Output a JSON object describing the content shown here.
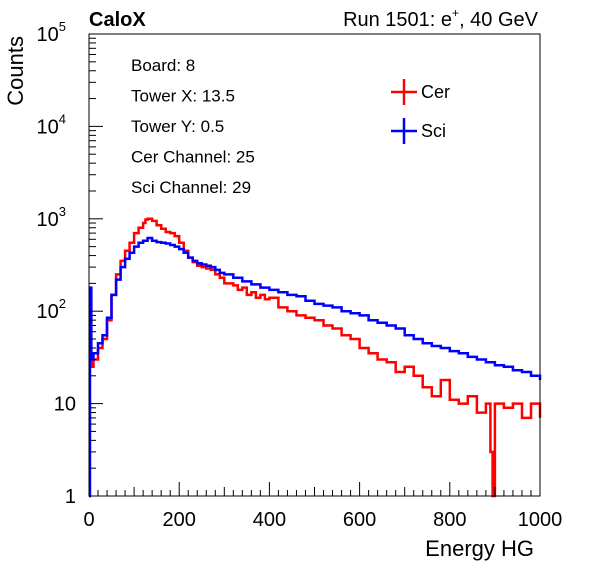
{
  "chart_data": {
    "type": "line",
    "style": "step-histogram",
    "brand": "CaloX",
    "run_label": "Run 1501: e",
    "run_superscript": "+",
    "run_energy": ", 40 GeV",
    "xlabel": "Energy HG",
    "ylabel": "Counts",
    "xlim": [
      0,
      1000
    ],
    "ylim": [
      1,
      100000
    ],
    "yscale": "log",
    "x_ticks": [
      "0",
      "200",
      "400",
      "600",
      "800",
      "1000"
    ],
    "y_ticks": [
      {
        "base": "1",
        "exp": ""
      },
      {
        "base": "10",
        "exp": ""
      },
      {
        "base": "10",
        "exp": "2"
      },
      {
        "base": "10",
        "exp": "3"
      },
      {
        "base": "10",
        "exp": "4"
      },
      {
        "base": "10",
        "exp": "5"
      }
    ],
    "info_lines": [
      "Board: 8",
      "Tower X: 13.5",
      "Tower Y: 0.5",
      "Cer Channel: 25",
      "Sci Channel: 29"
    ],
    "legend_position": "top-right",
    "series": [
      {
        "name": "Cer",
        "color": "#ff0000",
        "points": [
          [
            0,
            1
          ],
          [
            2,
            150
          ],
          [
            5,
            25
          ],
          [
            10,
            30
          ],
          [
            20,
            40
          ],
          [
            30,
            50
          ],
          [
            40,
            80
          ],
          [
            50,
            150
          ],
          [
            60,
            250
          ],
          [
            70,
            350
          ],
          [
            80,
            450
          ],
          [
            90,
            550
          ],
          [
            100,
            700
          ],
          [
            110,
            800
          ],
          [
            120,
            900
          ],
          [
            125,
            980
          ],
          [
            130,
            1000
          ],
          [
            140,
            950
          ],
          [
            150,
            850
          ],
          [
            160,
            780
          ],
          [
            170,
            720
          ],
          [
            180,
            700
          ],
          [
            190,
            650
          ],
          [
            200,
            550
          ],
          [
            210,
            450
          ],
          [
            220,
            380
          ],
          [
            230,
            340
          ],
          [
            240,
            310
          ],
          [
            250,
            300
          ],
          [
            260,
            290
          ],
          [
            270,
            280
          ],
          [
            280,
            250
          ],
          [
            290,
            230
          ],
          [
            300,
            200
          ],
          [
            310,
            200
          ],
          [
            320,
            190
          ],
          [
            330,
            170
          ],
          [
            340,
            180
          ],
          [
            350,
            150
          ],
          [
            360,
            160
          ],
          [
            370,
            140
          ],
          [
            380,
            150
          ],
          [
            390,
            135
          ],
          [
            400,
            140
          ],
          [
            420,
            110
          ],
          [
            440,
            100
          ],
          [
            460,
            90
          ],
          [
            480,
            85
          ],
          [
            500,
            80
          ],
          [
            520,
            70
          ],
          [
            540,
            65
          ],
          [
            560,
            55
          ],
          [
            580,
            50
          ],
          [
            600,
            40
          ],
          [
            620,
            35
          ],
          [
            640,
            30
          ],
          [
            660,
            28
          ],
          [
            680,
            22
          ],
          [
            700,
            25
          ],
          [
            720,
            20
          ],
          [
            740,
            15
          ],
          [
            760,
            12
          ],
          [
            780,
            18
          ],
          [
            800,
            11
          ],
          [
            820,
            10
          ],
          [
            840,
            12
          ],
          [
            860,
            8
          ],
          [
            880,
            10
          ],
          [
            890,
            3
          ],
          [
            895,
            1
          ],
          [
            900,
            10
          ],
          [
            920,
            9
          ],
          [
            940,
            10
          ],
          [
            960,
            7
          ],
          [
            980,
            10
          ],
          [
            1000,
            7
          ]
        ]
      },
      {
        "name": "Sci",
        "color": "#0000ff",
        "points": [
          [
            0,
            1
          ],
          [
            2,
            180
          ],
          [
            5,
            30
          ],
          [
            10,
            35
          ],
          [
            20,
            45
          ],
          [
            30,
            55
          ],
          [
            40,
            85
          ],
          [
            50,
            150
          ],
          [
            60,
            220
          ],
          [
            70,
            300
          ],
          [
            80,
            370
          ],
          [
            90,
            430
          ],
          [
            100,
            500
          ],
          [
            110,
            550
          ],
          [
            120,
            580
          ],
          [
            130,
            620
          ],
          [
            140,
            580
          ],
          [
            150,
            560
          ],
          [
            160,
            550
          ],
          [
            170,
            540
          ],
          [
            180,
            520
          ],
          [
            190,
            500
          ],
          [
            200,
            470
          ],
          [
            210,
            430
          ],
          [
            220,
            380
          ],
          [
            230,
            350
          ],
          [
            240,
            330
          ],
          [
            250,
            320
          ],
          [
            260,
            310
          ],
          [
            270,
            300
          ],
          [
            280,
            280
          ],
          [
            290,
            260
          ],
          [
            300,
            250
          ],
          [
            320,
            230
          ],
          [
            340,
            210
          ],
          [
            360,
            195
          ],
          [
            380,
            180
          ],
          [
            400,
            170
          ],
          [
            420,
            160
          ],
          [
            440,
            150
          ],
          [
            460,
            145
          ],
          [
            480,
            130
          ],
          [
            500,
            120
          ],
          [
            520,
            115
          ],
          [
            540,
            110
          ],
          [
            560,
            100
          ],
          [
            580,
            95
          ],
          [
            600,
            90
          ],
          [
            620,
            80
          ],
          [
            640,
            75
          ],
          [
            660,
            70
          ],
          [
            680,
            65
          ],
          [
            700,
            55
          ],
          [
            720,
            50
          ],
          [
            740,
            45
          ],
          [
            760,
            42
          ],
          [
            780,
            40
          ],
          [
            800,
            37
          ],
          [
            820,
            35
          ],
          [
            840,
            32
          ],
          [
            860,
            30
          ],
          [
            880,
            28
          ],
          [
            900,
            26
          ],
          [
            920,
            25
          ],
          [
            940,
            23
          ],
          [
            960,
            22
          ],
          [
            980,
            20
          ],
          [
            1000,
            18
          ]
        ]
      }
    ]
  }
}
